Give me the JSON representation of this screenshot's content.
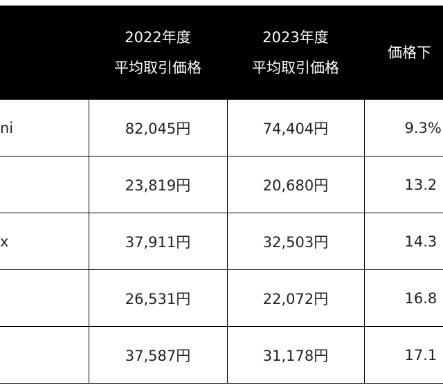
{
  "table": {
    "header": [
      null,
      [
        "2022年度",
        "平均取引価格"
      ],
      [
        "2023年度",
        "平均取引価格"
      ],
      "価格下"
    ],
    "rows": [
      [
        "ni",
        "82,045円",
        "74,404円",
        "9.3%"
      ],
      [
        null,
        "23,819円",
        "20,680円",
        "13.2"
      ],
      [
        "x",
        "37,911円",
        "32,503円",
        "14.3"
      ],
      [
        null,
        "26,531円",
        "22,072円",
        "16.8"
      ],
      [
        null,
        "37,587円",
        "31,178円",
        "17.1"
      ]
    ]
  }
}
